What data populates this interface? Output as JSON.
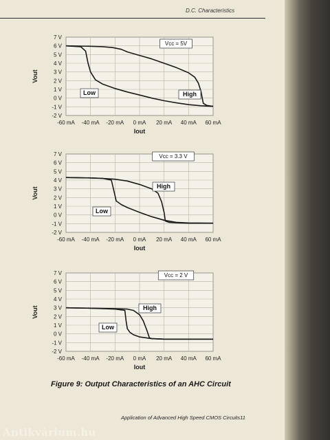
{
  "header": {
    "text": "D.C. Characteristics"
  },
  "caption": "Figure 9: Output Characteristics of an AHC Circuit",
  "footer": "Application of Advanced High Speed CMOS Circuits11",
  "watermark": "Antikvárium.hu",
  "chart_data": [
    {
      "type": "line",
      "ylabel": "Vout",
      "xlabel": "Iout",
      "xlim": [
        -60,
        60
      ],
      "ylim": [
        -2,
        7
      ],
      "x_tick_labels": [
        "-60 mA",
        "-40 mA",
        "-20 mA",
        "0 mA",
        "20 mA",
        "40 mA",
        "60 mA"
      ],
      "y_tick_labels": [
        "-2 V",
        "-1 V",
        "0 V",
        "1 V",
        "2 V",
        "3 V",
        "4 V",
        "5 V",
        "6 V",
        "7 V"
      ],
      "annotation": "Vcc = 5V",
      "grid": true,
      "series": [
        {
          "name": "High",
          "x": [
            -60,
            -40,
            -30,
            -22,
            -15,
            -10,
            0,
            10,
            20,
            30,
            40,
            45,
            48,
            50,
            52,
            55,
            60
          ],
          "y": [
            6.0,
            5.95,
            5.9,
            5.8,
            5.6,
            5.3,
            4.9,
            4.5,
            4.0,
            3.5,
            2.9,
            2.4,
            1.7,
            0.8,
            -0.6,
            -0.85,
            -0.95
          ]
        },
        {
          "name": "Low",
          "x": [
            -60,
            -48,
            -44,
            -42,
            -40,
            -36,
            -30,
            -20,
            -10,
            0,
            10,
            20,
            30,
            40,
            50,
            60
          ],
          "y": [
            6.0,
            5.9,
            5.4,
            4.0,
            3.0,
            2.1,
            1.6,
            1.1,
            0.7,
            0.35,
            0.0,
            -0.3,
            -0.55,
            -0.75,
            -0.88,
            -0.95
          ]
        }
      ]
    },
    {
      "type": "line",
      "ylabel": "Vout",
      "xlabel": "Iout",
      "xlim": [
        -60,
        60
      ],
      "ylim": [
        -2,
        7
      ],
      "x_tick_labels": [
        "-60 mA",
        "-40 mA",
        "-20 mA",
        "0 mA",
        "20 mA",
        "40 mA",
        "60 mA"
      ],
      "y_tick_labels": [
        "-2 V",
        "-1 V",
        "0 V",
        "1 V",
        "2 V",
        "3 V",
        "4 V",
        "5 V",
        "6 V",
        "7 V"
      ],
      "annotation": "Vcc = 3.3 V",
      "grid": true,
      "series": [
        {
          "name": "High",
          "x": [
            -60,
            -40,
            -30,
            -20,
            -10,
            0,
            10,
            15,
            18,
            20,
            21,
            24,
            30,
            40,
            60
          ],
          "y": [
            4.3,
            4.25,
            4.2,
            4.1,
            3.9,
            3.5,
            3.0,
            2.5,
            1.5,
            0.3,
            -0.7,
            -0.85,
            -0.9,
            -0.95,
            -0.95
          ]
        },
        {
          "name": "Low",
          "x": [
            -60,
            -40,
            -30,
            -23,
            -21,
            -19,
            -15,
            -10,
            0,
            10,
            20,
            30,
            40,
            60
          ],
          "y": [
            4.3,
            4.25,
            4.2,
            4.0,
            2.8,
            1.6,
            1.2,
            0.85,
            0.3,
            -0.2,
            -0.6,
            -0.85,
            -0.92,
            -0.95
          ]
        }
      ]
    },
    {
      "type": "line",
      "ylabel": "Vout",
      "xlabel": "Iout",
      "xlim": [
        -60,
        60
      ],
      "ylim": [
        -2,
        7
      ],
      "x_tick_labels": [
        "-60 mA",
        "-40 mA",
        "-20 mA",
        "0 mA",
        "20 mA",
        "40 mA",
        "60 mA"
      ],
      "y_tick_labels": [
        "-2 V",
        "-1 V",
        "0 V",
        "1 V",
        "2 V",
        "3 V",
        "4 V",
        "5 V",
        "6 V",
        "7 V"
      ],
      "annotation": "Vcc = 2 V",
      "grid": true,
      "series": [
        {
          "name": "High",
          "x": [
            -60,
            -40,
            -20,
            -10,
            -5,
            0,
            3,
            6,
            8,
            10,
            20,
            40,
            60
          ],
          "y": [
            3.0,
            2.95,
            2.9,
            2.85,
            2.7,
            2.2,
            1.5,
            0.4,
            -0.45,
            -0.55,
            -0.6,
            -0.6,
            -0.6
          ]
        },
        {
          "name": "Low",
          "x": [
            -60,
            -40,
            -20,
            -12,
            -11,
            -10,
            -8,
            -5,
            0,
            10,
            20,
            40,
            60
          ],
          "y": [
            3.0,
            2.95,
            2.85,
            2.7,
            1.5,
            0.6,
            0.2,
            -0.1,
            -0.35,
            -0.55,
            -0.6,
            -0.6,
            -0.6
          ]
        }
      ]
    }
  ]
}
